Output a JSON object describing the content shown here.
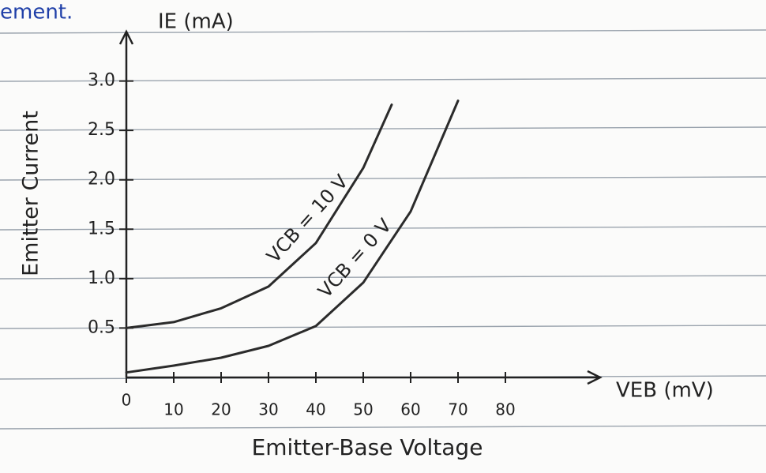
{
  "page_fragment": "ement.",
  "chart_data": {
    "type": "line",
    "x_label": "Emitter-Base Voltage",
    "y_label": "Emitter Current",
    "x_axis_end_label": "VEB (mV)",
    "y_axis_end_label": "IE (mA)",
    "xlim": [
      0,
      100
    ],
    "ylim": [
      0,
      3.5
    ],
    "xticks": [
      0,
      10,
      20,
      30,
      40,
      50,
      60,
      70,
      80
    ],
    "yticks": [
      0.5,
      {
        "value": 1,
        "label": "1.0"
      },
      1.5,
      {
        "value": 2,
        "label": "2.0"
      },
      2.5,
      {
        "value": 3,
        "label": "3.0"
      }
    ],
    "grid": false,
    "series": [
      {
        "name": "VCB = 10 V",
        "color": "#2b2b2b",
        "x": [
          0,
          10,
          20,
          30,
          40,
          50,
          56
        ],
        "values": [
          0.5,
          0.56,
          0.7,
          0.92,
          1.36,
          2.12,
          2.76
        ]
      },
      {
        "name": "VCB = 0 V",
        "color": "#2b2b2b",
        "x": [
          0,
          10,
          20,
          30,
          40,
          50,
          60,
          70
        ],
        "values": [
          0.05,
          0.12,
          0.2,
          0.32,
          0.52,
          0.96,
          1.68,
          2.8
        ]
      }
    ]
  }
}
